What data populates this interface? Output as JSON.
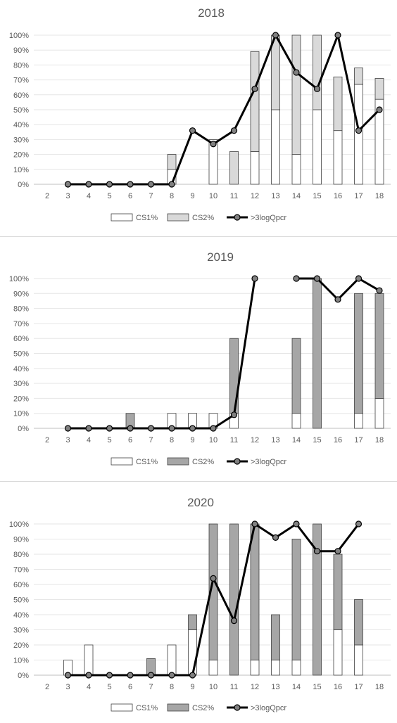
{
  "chart_data": [
    {
      "type": "bar",
      "title": "2018",
      "categories": [
        "2",
        "3",
        "4",
        "5",
        "6",
        "7",
        "8",
        "9",
        "10",
        "11",
        "12",
        "13",
        "14",
        "15",
        "16",
        "17",
        "18"
      ],
      "yticks": [
        "0%",
        "10%",
        "20%",
        "30%",
        "40%",
        "50%",
        "60%",
        "70%",
        "80%",
        "90%",
        "100%"
      ],
      "ylim": [
        0,
        100
      ],
      "legend": {
        "position": "bottom",
        "labels": [
          "CS1%",
          "CS2%",
          ">3logQpcr"
        ]
      },
      "series": [
        {
          "name": "CS1%",
          "kind": "stacked-bar",
          "color": "#ffffff",
          "values": [
            null,
            0,
            0,
            0,
            0,
            0,
            10,
            0,
            30,
            0,
            22,
            50,
            20,
            50,
            36,
            67,
            57
          ]
        },
        {
          "name": "CS2%",
          "kind": "stacked-bar",
          "color": "#d9d9d9",
          "values": [
            null,
            0,
            0,
            0,
            0,
            0,
            10,
            0,
            0,
            22,
            67,
            50,
            80,
            50,
            36,
            11,
            14
          ]
        },
        {
          "name": ">3logQpcr",
          "kind": "line",
          "color": "#000000",
          "values": [
            null,
            0,
            0,
            0,
            0,
            0,
            0,
            36,
            27,
            36,
            64,
            100,
            75,
            64,
            100,
            36,
            50
          ]
        }
      ]
    },
    {
      "type": "bar",
      "title": "2019",
      "categories": [
        "2",
        "3",
        "4",
        "5",
        "6",
        "7",
        "8",
        "9",
        "10",
        "11",
        "12",
        "13",
        "14",
        "15",
        "16",
        "17",
        "18"
      ],
      "yticks": [
        "0%",
        "10%",
        "20%",
        "30%",
        "40%",
        "50%",
        "60%",
        "70%",
        "80%",
        "90%",
        "100%"
      ],
      "ylim": [
        0,
        100
      ],
      "legend": {
        "position": "bottom",
        "labels": [
          "CS1%",
          "CS2%",
          ">3logQpcr"
        ]
      },
      "series": [
        {
          "name": "CS1%",
          "kind": "stacked-bar",
          "color": "#ffffff",
          "values": [
            null,
            0,
            0,
            0,
            0,
            0,
            10,
            10,
            10,
            10,
            null,
            null,
            10,
            0,
            null,
            10,
            20
          ]
        },
        {
          "name": "CS2%",
          "kind": "stacked-bar",
          "color": "#a6a6a6",
          "values": [
            null,
            0,
            0,
            0,
            10,
            0,
            0,
            0,
            0,
            50,
            null,
            null,
            50,
            100,
            null,
            80,
            70
          ]
        },
        {
          "name": ">3logQpcr",
          "kind": "line",
          "color": "#000000",
          "values": [
            null,
            0,
            0,
            0,
            0,
            0,
            0,
            0,
            0,
            9,
            100,
            null,
            100,
            100,
            86,
            100,
            92
          ]
        }
      ]
    },
    {
      "type": "bar",
      "title": "2020",
      "categories": [
        "2",
        "3",
        "4",
        "5",
        "6",
        "7",
        "8",
        "9",
        "10",
        "11",
        "12",
        "13",
        "14",
        "15",
        "16",
        "17",
        "18"
      ],
      "yticks": [
        "0%",
        "10%",
        "20%",
        "30%",
        "40%",
        "50%",
        "60%",
        "70%",
        "80%",
        "90%",
        "100%"
      ],
      "ylim": [
        0,
        100
      ],
      "legend": {
        "position": "bottom",
        "labels": [
          "CS1%",
          "CS2%",
          ">3logQpcr"
        ]
      },
      "series": [
        {
          "name": "CS1%",
          "kind": "stacked-bar",
          "color": "#ffffff",
          "values": [
            null,
            10,
            20,
            0,
            0,
            0,
            20,
            30,
            10,
            0,
            10,
            10,
            10,
            0,
            30,
            20,
            null
          ]
        },
        {
          "name": "CS2%",
          "kind": "stacked-bar",
          "color": "#a6a6a6",
          "values": [
            null,
            0,
            0,
            0,
            0,
            11,
            0,
            10,
            90,
            100,
            90,
            30,
            80,
            100,
            50,
            30,
            null
          ]
        },
        {
          "name": ">3logQpcr",
          "kind": "line",
          "color": "#000000",
          "values": [
            null,
            0,
            0,
            0,
            0,
            0,
            0,
            0,
            64,
            36,
            100,
            91,
            100,
            82,
            82,
            100,
            null
          ]
        }
      ]
    }
  ]
}
